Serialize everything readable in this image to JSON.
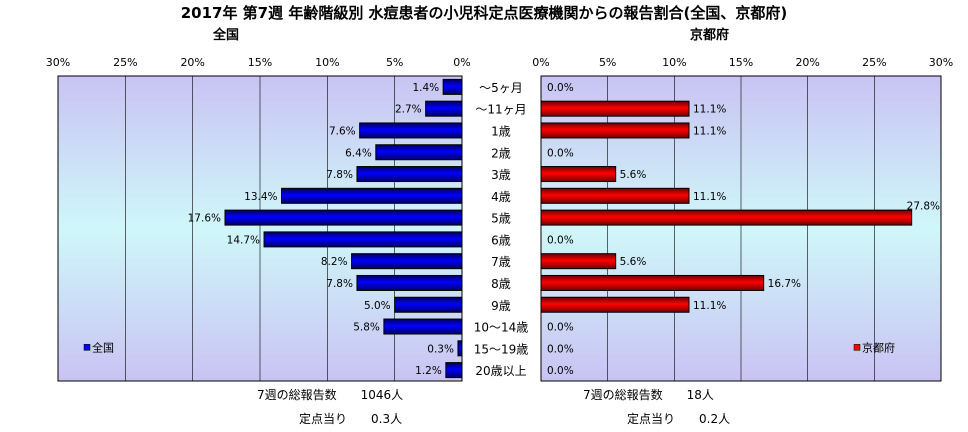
{
  "title": "2017年 第7週 年齢階級別 水痘患者の小児科定点医療機関からの報告割合(全国、京都府)",
  "chart_data": [
    {
      "type": "bar",
      "orientation": "horizontal",
      "direction": "right-to-left",
      "title": "全国",
      "legend": "全国",
      "legend_position": "bottom-left",
      "xlim": [
        0,
        30
      ],
      "ticks": [
        "30%",
        "25%",
        "20%",
        "15%",
        "10%",
        "5%",
        "0%"
      ],
      "color": "#0000ff",
      "categories": [
        "～5ヶ月",
        "～11ヶ月",
        "1歳",
        "2歳",
        "3歳",
        "4歳",
        "5歳",
        "6歳",
        "7歳",
        "8歳",
        "9歳",
        "10～14歳",
        "15～19歳",
        "20歳以上"
      ],
      "values": [
        1.4,
        2.7,
        7.6,
        6.4,
        7.8,
        13.4,
        17.6,
        14.7,
        8.2,
        7.8,
        5.0,
        5.8,
        0.3,
        1.2
      ],
      "labels": [
        "1.4%",
        "2.7%",
        "7.6%",
        "6.4%",
        "7.8%",
        "13.4%",
        "17.6%",
        "14.7%",
        "8.2%",
        "7.8%",
        "5.0%",
        "5.8%",
        "0.3%",
        "1.2%"
      ],
      "grid": true
    },
    {
      "type": "bar",
      "orientation": "horizontal",
      "direction": "left-to-right",
      "title": "京都府",
      "legend": "京都府",
      "legend_position": "bottom-right",
      "xlim": [
        0,
        30
      ],
      "ticks": [
        "0%",
        "5%",
        "10%",
        "15%",
        "20%",
        "25%",
        "30%"
      ],
      "color": "#ff0000",
      "categories": [
        "～5ヶ月",
        "～11ヶ月",
        "1歳",
        "2歳",
        "3歳",
        "4歳",
        "5歳",
        "6歳",
        "7歳",
        "8歳",
        "9歳",
        "10～14歳",
        "15～19歳",
        "20歳以上"
      ],
      "values": [
        0.0,
        11.1,
        11.1,
        0.0,
        5.6,
        11.1,
        27.8,
        0.0,
        5.6,
        16.7,
        11.1,
        0.0,
        0.0,
        0.0
      ],
      "labels": [
        "0.0%",
        "11.1%",
        "11.1%",
        "0.0%",
        "5.6%",
        "11.1%",
        "27.8%",
        "0.0%",
        "5.6%",
        "16.7%",
        "11.1%",
        "0.0%",
        "0.0%",
        "0.0%"
      ],
      "grid": true
    }
  ],
  "footer": {
    "national_reports": "7週の総報告数　　1046人",
    "national_per_site": "定点当り　　0.3人",
    "kyoto_reports": "7週の総報告数　　18人",
    "kyoto_per_site": "定点当り　　0.2人"
  }
}
